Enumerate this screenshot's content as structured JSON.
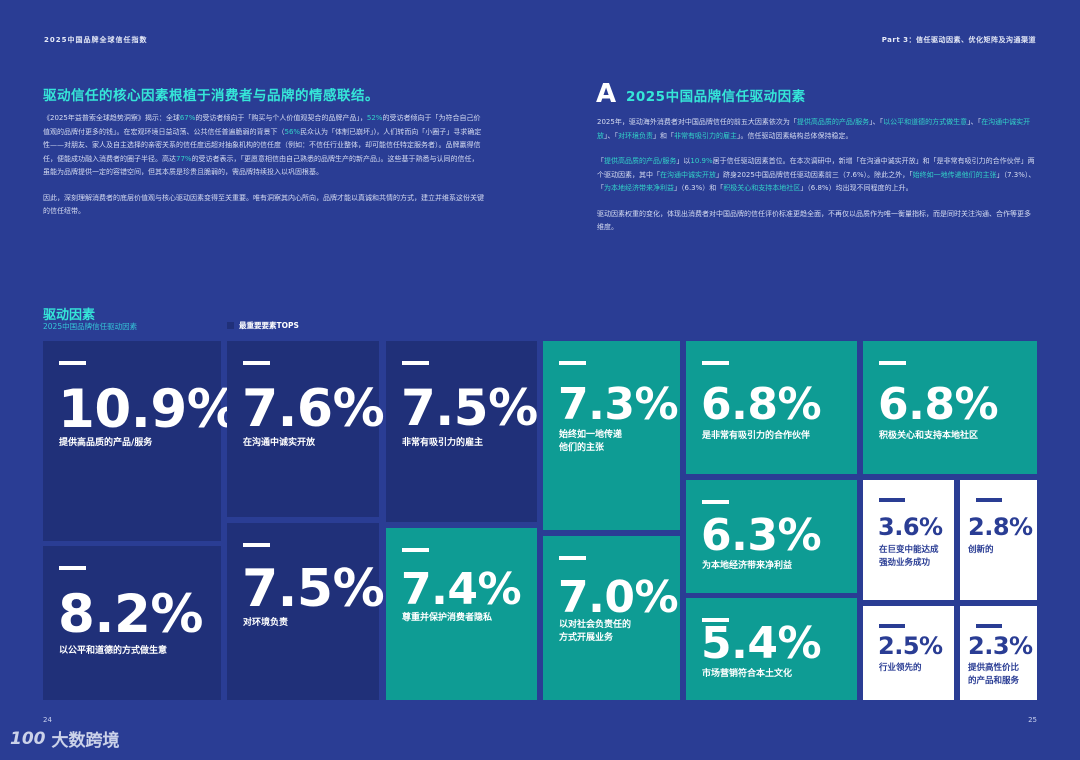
{
  "header": {
    "left": "2025中国品牌全球信任指数",
    "right": "Part 3：信任驱动因素、优化矩阵及沟通渠道"
  },
  "left_section": {
    "heading": "驱动信任的核心因素根植于消费者与品牌的情感联结。",
    "p1": [
      {
        "t": "《2025年益普索全球趋势洞察》揭示：全球"
      },
      {
        "t": "67%",
        "hl": true
      },
      {
        "t": "的受访者倾向于「购买与个人价值观契合的品牌产品」，"
      },
      {
        "t": "52%",
        "hl": true
      },
      {
        "t": "的受访者倾向于「为符合自己价值观的品牌付更多的钱」。在宏观环境日益动荡、公共信任普遍脆弱的背景下（"
      },
      {
        "t": "56%",
        "hl": true
      },
      {
        "t": "民众认为「体制已崩坏」)，人们转而向「小圈子」寻求确定性——对朋友、家人及自主选择的亲密关系的信任度远超对抽象机构的信任度（例如：不信任行业整体，却可能信任特定服务者）。品牌赢得信任，便能成功融入消费者的圈子半径。高达"
      },
      {
        "t": "77%",
        "hl": true
      },
      {
        "t": "的受访者表示，「更愿意相信由自己熟悉的品牌生产的新产品」。这些基于熟悉与认同的信任，虽能为品牌提供一定的容错空间，但其本质是珍贵且脆弱的，需品牌持续投入以巩固根基。"
      }
    ],
    "p2": "因此，深刻理解消费者的底层价值观与核心驱动因素变得至关重要。唯有洞察其内心所向，品牌才能以真诚和共情的方式，建立并维系这份关键的信任纽带。"
  },
  "right_section": {
    "logo_letter": "A",
    "heading": "2025中国品牌信任驱动因素",
    "p1": [
      {
        "t": "2025年，驱动海外消费者对中国品牌信任的前五大因素依次为「"
      },
      {
        "t": "提供高品质的产品/服务",
        "hl": true
      },
      {
        "t": "」、「"
      },
      {
        "t": "以公平和道德的方式做生意",
        "hl": true
      },
      {
        "t": "」、「"
      },
      {
        "t": "在沟通中诚实开放",
        "hl": true
      },
      {
        "t": "」、「"
      },
      {
        "t": "对环境负责",
        "hl": true
      },
      {
        "t": "」和「"
      },
      {
        "t": "非常有吸引力的雇主",
        "hl": true
      },
      {
        "t": "」。信任驱动因素结构总体保持稳定。"
      }
    ],
    "p2": [
      {
        "t": "「"
      },
      {
        "t": "提供高品质的产品/服务",
        "hl": true
      },
      {
        "t": "」以"
      },
      {
        "t": "10.9%",
        "hl": true
      },
      {
        "t": "居于信任驱动因素首位。在本次调研中，新增「在沟通中诚实开放」和「是非常有吸引力的合作伙伴」两个驱动因素，其中「"
      },
      {
        "t": "在沟通中诚实开放",
        "hl": true
      },
      {
        "t": "」跻身2025中国品牌信任驱动因素前三（7.6%）。除此之外，「"
      },
      {
        "t": "始终如一地传递他们的主张",
        "hl": true
      },
      {
        "t": "」（7.3%）、「"
      },
      {
        "t": "为本地经济带来净利益",
        "hl": true
      },
      {
        "t": "」（6.3%）和「"
      },
      {
        "t": "积极关心和支持本地社区",
        "hl": true
      },
      {
        "t": "」（6.8%）均出现不同程度的上升。"
      }
    ],
    "p3": "驱动因素权重的变化，体现出消费者对中国品牌的信任评价标准更趋全面，不再仅以品质作为唯一衡量指标，而是同时关注沟通、合作等更多维度。"
  },
  "factors": {
    "title": "驱动因素",
    "subtitle": "2025中国品牌信任驱动因素",
    "legend_label": "最重要要素TOPS",
    "items": [
      {
        "value": "10.9%",
        "label": "提供高品质的产品/服务"
      },
      {
        "value": "8.2%",
        "label": "以公平和道德的方式做生意"
      },
      {
        "value": "7.6%",
        "label": "在沟通中诚实开放"
      },
      {
        "value": "7.5%",
        "label": "对环境负责"
      },
      {
        "value": "7.5%",
        "label": "非常有吸引力的雇主"
      },
      {
        "value": "7.4%",
        "label": "尊重并保护消费者隐私"
      },
      {
        "value": "7.3%",
        "label": "始终如一地传递\n他们的主张"
      },
      {
        "value": "7.0%",
        "label": "以对社会负责任的\n方式开展业务"
      },
      {
        "value": "6.8%",
        "label": "是非常有吸引力的合作伙伴"
      },
      {
        "value": "6.3%",
        "label": "为本地经济带来净利益"
      },
      {
        "value": "5.4%",
        "label": "市场营销符合本土文化"
      },
      {
        "value": "6.8%",
        "label": "积极关心和支持本地社区"
      },
      {
        "value": "3.6%",
        "label": "在巨变中能达成\n强劲业务成功"
      },
      {
        "value": "2.8%",
        "label": "创新的"
      },
      {
        "value": "2.5%",
        "label": "行业领先的"
      },
      {
        "value": "2.3%",
        "label": "提供高性价比\n的产品和服务"
      }
    ]
  },
  "footer": {
    "page_left": "24",
    "page_right": "25",
    "watermark": "大数跨境",
    "watermark_logo": "100"
  },
  "colors": {
    "background": "#2a3d94",
    "navy_tile": "#203079",
    "teal_tile": "#0e9c94",
    "white_tile": "#ffffff",
    "accent": "#35e6d8"
  }
}
